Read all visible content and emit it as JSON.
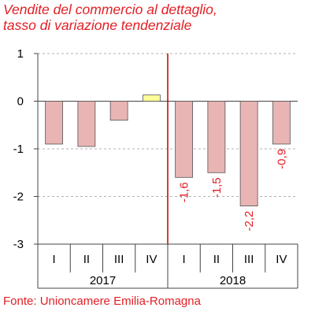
{
  "title_lines": [
    "Vendite del commercio al dettaglio,",
    "tasso di variazione tendenziale"
  ],
  "source": "Fonte: Unioncamere Emilia-Romagna",
  "colors": {
    "accent": "#e31e24",
    "bar_fill": "#e8b4b4",
    "bar_highlight": "#ffff99",
    "bar_stroke": "#555555",
    "grid": "#999999",
    "separator": "#c00000",
    "axis": "#444444",
    "text": "#000000"
  },
  "chart_data": {
    "type": "bar",
    "title": "Vendite del commercio al dettaglio, tasso di variazione tendenziale",
    "categories": [
      "I",
      "II",
      "III",
      "IV",
      "I",
      "II",
      "III",
      "IV"
    ],
    "groups": [
      {
        "label": "2017",
        "categories": [
          "I",
          "II",
          "III",
          "IV"
        ]
      },
      {
        "label": "2018",
        "categories": [
          "I",
          "II",
          "III",
          "IV"
        ]
      }
    ],
    "values": [
      -0.9,
      -0.95,
      -0.4,
      0.13,
      -1.6,
      -1.5,
      -2.2,
      -0.9
    ],
    "value_labels": [
      "",
      "",
      "",
      "",
      "-1,6",
      "-1,5",
      "-2,2",
      "-0,9"
    ],
    "highlight_index": 3,
    "ylim": [
      -3,
      1
    ],
    "yticks": [
      1,
      0,
      -1,
      -2,
      -3
    ],
    "grid": "horizontal dashed",
    "separator_between": [
      3,
      4
    ],
    "xlabel": "",
    "ylabel": ""
  }
}
